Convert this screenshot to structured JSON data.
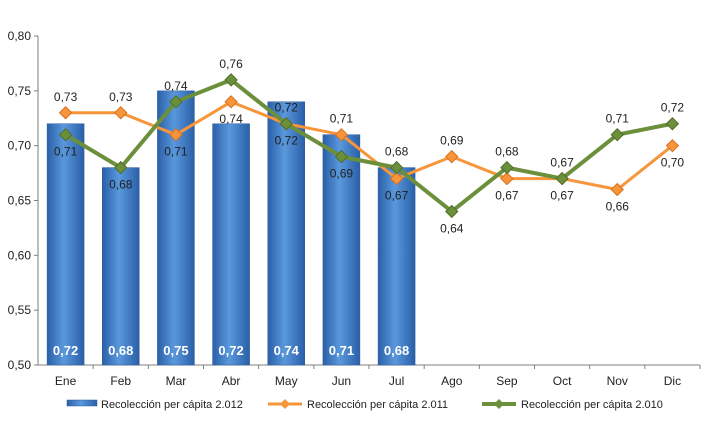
{
  "chart_data": {
    "type": "bar",
    "categories": [
      "Ene",
      "Feb",
      "Mar",
      "Abr",
      "May",
      "Jun",
      "Jul",
      "Ago",
      "Sep",
      "Oct",
      "Nov",
      "Dic"
    ],
    "ylim": [
      0.5,
      0.8
    ],
    "yticks": [
      "0,50",
      "0,55",
      "0,60",
      "0,65",
      "0,70",
      "0,75",
      "0,80"
    ],
    "grid": false,
    "legend_position": "bottom",
    "series": [
      {
        "name": "Recolección per cápita 2.012",
        "type": "bar",
        "color": "#3a78c4",
        "values": [
          0.72,
          0.68,
          0.75,
          0.72,
          0.74,
          0.71,
          0.68,
          null,
          null,
          null,
          null,
          null
        ],
        "labels": [
          "0,72",
          "0,68",
          "0,75",
          "0,72",
          "0,74",
          "0,71",
          "0,68",
          "",
          "",
          "",
          "",
          ""
        ]
      },
      {
        "name": "Recolección per cápita 2.011",
        "type": "line",
        "color": "#f7953b",
        "values": [
          0.73,
          0.73,
          0.71,
          0.74,
          0.72,
          0.71,
          0.67,
          0.69,
          0.67,
          0.67,
          0.66,
          0.7
        ],
        "labels": [
          "0,73",
          "0,73",
          "0,71",
          "0,74",
          "0,72",
          "0,71",
          "0,67",
          "0,69",
          "0,67",
          "0,67",
          "0,66",
          "0,70"
        ]
      },
      {
        "name": "Recolección per cápita 2.010",
        "type": "line",
        "color": "#6b8f3a",
        "values": [
          0.71,
          0.68,
          0.74,
          0.76,
          0.72,
          0.69,
          0.68,
          0.64,
          0.68,
          0.67,
          0.71,
          0.72
        ],
        "labels": [
          "0,71",
          "0,68",
          "0,74",
          "0,76",
          "0,72",
          "0,69",
          "0,68",
          "0,64",
          "0,68",
          "0,67",
          "0,71",
          "0,72"
        ]
      }
    ]
  }
}
